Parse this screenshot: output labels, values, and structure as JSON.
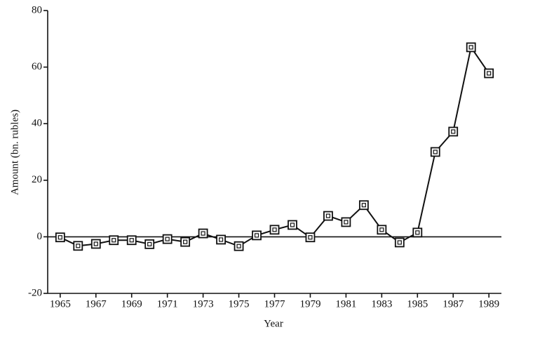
{
  "chart_data": {
    "type": "line",
    "x_label": "Year",
    "y_label": "Amount (bn. rubles)",
    "x": [
      1965,
      1966,
      1967,
      1968,
      1969,
      1970,
      1971,
      1972,
      1973,
      1974,
      1975,
      1976,
      1977,
      1978,
      1979,
      1980,
      1981,
      1982,
      1983,
      1984,
      1985,
      1986,
      1987,
      1988,
      1989
    ],
    "series": [
      {
        "color": "#111111",
        "values": [
          -0.2,
          -3.2,
          -2.5,
          -1.2,
          -1.2,
          -2.6,
          -0.8,
          -1.8,
          1.2,
          -1.0,
          -3.3,
          0.5,
          2.5,
          4.2,
          -0.2,
          7.4,
          5.2,
          11.2,
          2.5,
          -2.0,
          1.5,
          30,
          37.2,
          67,
          57.8
        ]
      }
    ],
    "xlim": [
      1964.3,
      1989.7
    ],
    "xticks": [
      1965,
      1967,
      1969,
      1971,
      1973,
      1975,
      1977,
      1979,
      1981,
      1983,
      1985,
      1987,
      1989
    ],
    "ylim": [
      -20,
      80
    ],
    "yticks": [
      -20,
      0,
      20,
      40,
      60,
      80
    ],
    "zero_line": true
  }
}
